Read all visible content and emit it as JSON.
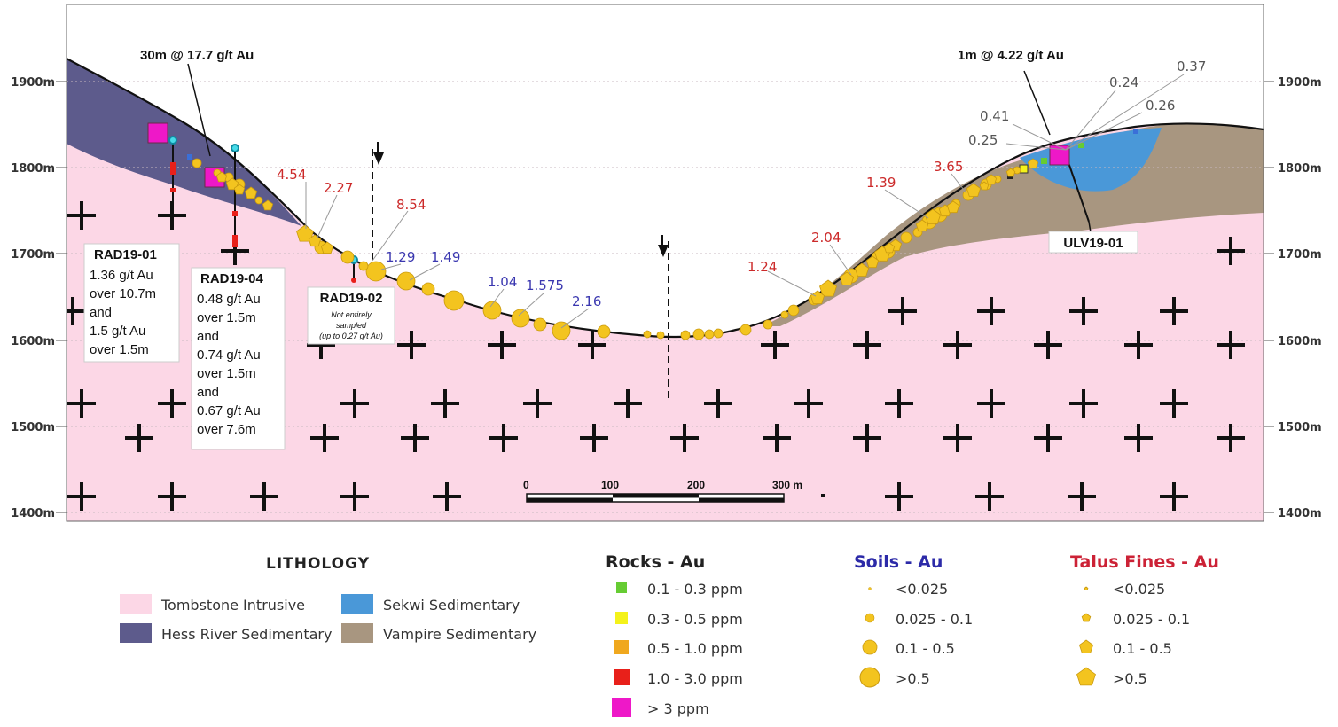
{
  "elevation_labels": {
    "left": [
      "1900m",
      "1800m",
      "1700m",
      "1600m",
      "1500m",
      "1400m"
    ],
    "right": [
      "1900m",
      "1800m",
      "1700m",
      "1600m",
      "1500m",
      "1400m"
    ]
  },
  "intercepts": {
    "left_callout": "30m @ 17.7 g/t Au",
    "right_callout": "1m @ 4.22 g/t Au"
  },
  "drillholes": {
    "rad19_01": {
      "name": "RAD19-01",
      "lines": [
        "1.36 g/t Au",
        "over 10.7m",
        "and",
        "1.5 g/t Au",
        "over 1.5m"
      ]
    },
    "rad19_04": {
      "name": "RAD19-04",
      "lines": [
        "0.48 g/t Au",
        "over 1.5m",
        "and",
        "0.74 g/t Au",
        "over 1.5m",
        "and",
        "0.67 g/t Au",
        "over 7.6m"
      ]
    },
    "rad19_02": {
      "name": "RAD19-02",
      "lines": [
        "Not entirely",
        "sampled",
        "(up to 0.27 g/t Au)"
      ]
    },
    "ulv19_01": {
      "name": "ULV19-01"
    }
  },
  "talus_values": [
    "4.54",
    "2.27",
    "8.54",
    "1.39",
    "3.65",
    "2.04",
    "1.24"
  ],
  "soil_values": [
    "1.29",
    "1.49",
    "1.04",
    "1.575",
    "2.16"
  ],
  "rock_values": [
    "0.37",
    "0.24",
    "0.41",
    "0.26",
    "0.25"
  ],
  "scale_bar": {
    "labels": [
      "0",
      "100",
      "200",
      "300 m"
    ]
  },
  "legend": {
    "lithology": {
      "title": "LITHOLOGY",
      "items": [
        {
          "label": "Tombstone Intrusive",
          "color": "#fcd7e6"
        },
        {
          "label": "Sekwi Sedimentary",
          "color": "#4a98d8"
        },
        {
          "label": "Hess River Sedimentary",
          "color": "#5d5b8c"
        },
        {
          "label": "Vampire Sedimentary",
          "color": "#a89680"
        }
      ]
    },
    "rocks": {
      "title": "Rocks - Au",
      "items": [
        {
          "label": "0.1 - 0.3 ppm",
          "color": "#66cc33"
        },
        {
          "label": "0.3 - 0.5 ppm",
          "color": "#f4f21a"
        },
        {
          "label": "0.5 - 1.0 ppm",
          "color": "#f0a81e"
        },
        {
          "label": "1.0 - 3.0 ppm",
          "color": "#e8201a"
        },
        {
          "label": "> 3 ppm",
          "color": "#ee18c8"
        }
      ]
    },
    "soils": {
      "title": "Soils - Au",
      "title_color": "#2c2aa8",
      "items": [
        "<0.025",
        "0.025 - 0.1",
        "0.1 - 0.5",
        ">0.5"
      ]
    },
    "talus": {
      "title": "Talus Fines - Au",
      "title_color": "#cc2236",
      "items": [
        "<0.025",
        "0.025 - 0.1",
        "0.1 - 0.5",
        ">0.5"
      ]
    }
  },
  "colors": {
    "tombstone": "#fcd7e6",
    "hess": "#5d5b8c",
    "sekwi": "#4a98d8",
    "vampire": "#a89680",
    "gold": "#f3c41f",
    "gold_stroke": "#c99a10",
    "talus_text": "#cc2a2a",
    "soil_text": "#3b38b0"
  }
}
